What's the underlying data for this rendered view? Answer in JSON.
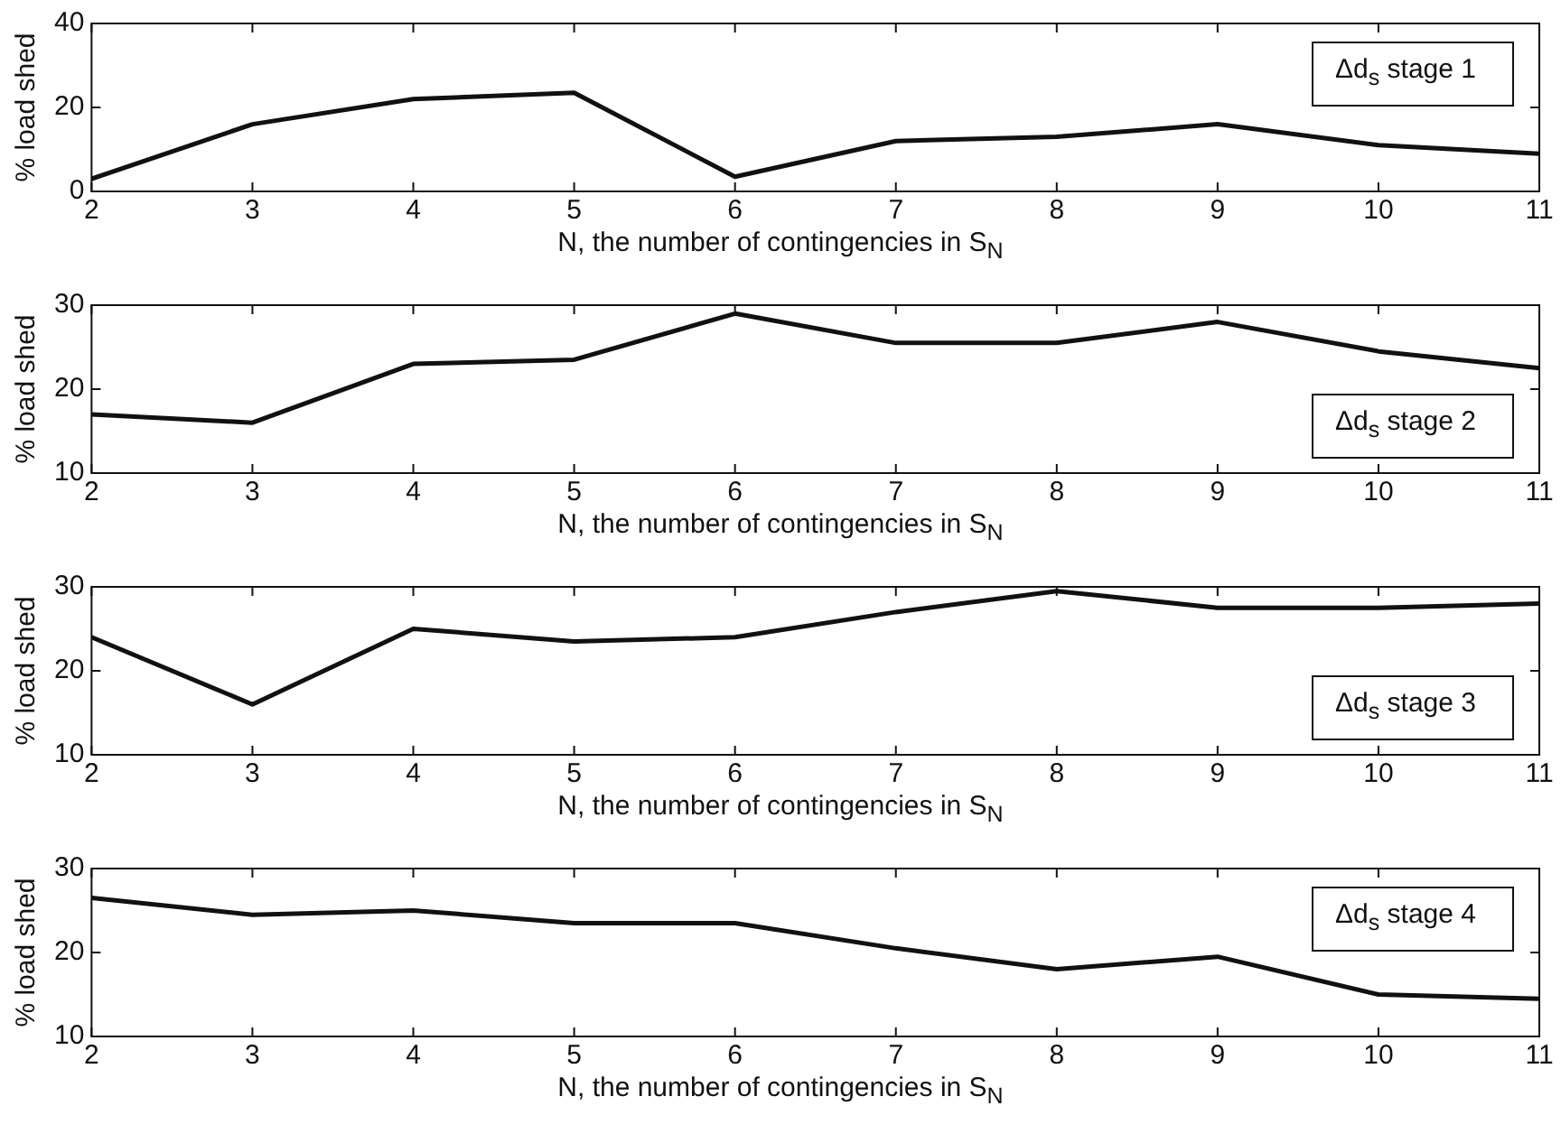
{
  "chart_data": [
    {
      "type": "line",
      "xlabel": "N, the number of contingencies in S$_{N}$",
      "ylabel": "% load shed",
      "x": [
        2,
        3,
        4,
        5,
        6,
        7,
        8,
        9,
        10,
        11
      ],
      "xlim": [
        2,
        11
      ],
      "xticks": [
        2,
        3,
        4,
        5,
        6,
        7,
        8,
        9,
        10,
        11
      ],
      "ylim": [
        0,
        40
      ],
      "yticks": [
        0,
        20,
        40
      ],
      "grid": false,
      "legend": "top right",
      "marker": "none",
      "line_style": "solid",
      "series": [
        {
          "name": "Δd$_{s}$ stage 1",
          "color": "#111111",
          "values": [
            3,
            16,
            22,
            23.5,
            3.5,
            12,
            13,
            16,
            11,
            9
          ]
        }
      ]
    },
    {
      "type": "line",
      "xlabel": "N, the number of contingencies in S$_{N}$",
      "ylabel": "% load shed",
      "x": [
        2,
        3,
        4,
        5,
        6,
        7,
        8,
        9,
        10,
        11
      ],
      "xlim": [
        2,
        11
      ],
      "xticks": [
        2,
        3,
        4,
        5,
        6,
        7,
        8,
        9,
        10,
        11
      ],
      "ylim": [
        10,
        30
      ],
      "yticks": [
        10,
        20,
        30
      ],
      "grid": false,
      "legend": "bottom right",
      "marker": "none",
      "line_style": "solid",
      "series": [
        {
          "name": "Δd$_{s}$ stage 2",
          "color": "#111111",
          "values": [
            17,
            16,
            23,
            23.5,
            29,
            25.5,
            25.5,
            28,
            24.5,
            22.5
          ]
        }
      ]
    },
    {
      "type": "line",
      "xlabel": "N, the number of contingencies in S$_{N}$",
      "ylabel": "% load shed",
      "x": [
        2,
        3,
        4,
        5,
        6,
        7,
        8,
        9,
        10,
        11
      ],
      "xlim": [
        2,
        11
      ],
      "xticks": [
        2,
        3,
        4,
        5,
        6,
        7,
        8,
        9,
        10,
        11
      ],
      "ylim": [
        10,
        30
      ],
      "yticks": [
        10,
        20,
        30
      ],
      "grid": false,
      "legend": "bottom right",
      "marker": "none",
      "line_style": "solid",
      "series": [
        {
          "name": "Δd$_{s}$ stage 3",
          "color": "#111111",
          "values": [
            24,
            16,
            25,
            23.5,
            24,
            27,
            29.5,
            27.5,
            27.5,
            28
          ]
        }
      ]
    },
    {
      "type": "line",
      "xlabel": "N, the number of contingencies in S$_{N}$",
      "ylabel": "% load shed",
      "x": [
        2,
        3,
        4,
        5,
        6,
        7,
        8,
        9,
        10,
        11
      ],
      "xlim": [
        2,
        11
      ],
      "xticks": [
        2,
        3,
        4,
        5,
        6,
        7,
        8,
        9,
        10,
        11
      ],
      "ylim": [
        10,
        30
      ],
      "yticks": [
        10,
        20,
        30
      ],
      "grid": false,
      "legend": "top right",
      "marker": "none",
      "line_style": "solid",
      "series": [
        {
          "name": "Δd$_{s}$ stage 4",
          "color": "#111111",
          "values": [
            26.5,
            24.5,
            25,
            23.5,
            23.5,
            20.5,
            18,
            19.5,
            15,
            14.5
          ]
        }
      ]
    }
  ]
}
